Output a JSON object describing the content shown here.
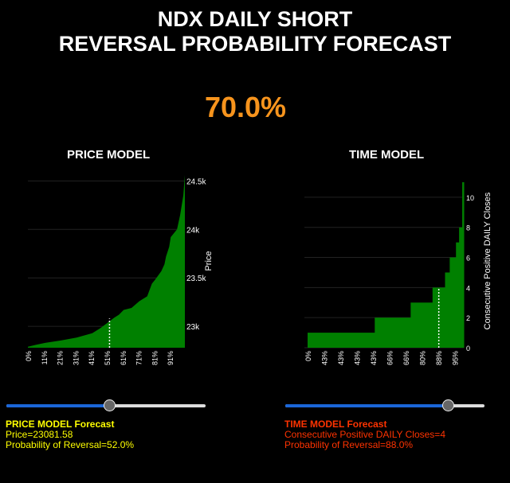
{
  "title": {
    "line1": "NDX DAILY SHORT",
    "line2": "REVERSAL PROBABILITY FORECAST"
  },
  "overall_probability": "70.0%",
  "colors": {
    "bar": "#008000",
    "accent": "#f7941d",
    "price_text": "#ffff00",
    "time_text": "#ff3300",
    "slider": "#1a66d8"
  },
  "chart_data": [
    {
      "type": "area",
      "title": "PRICE MODEL",
      "ylabel": "Price",
      "ylim": [
        22780,
        24560
      ],
      "yticks": [
        {
          "v": 23000,
          "label": "23k"
        },
        {
          "v": 23500,
          "label": "23.5k"
        },
        {
          "v": 24000,
          "label": "24k"
        },
        {
          "v": 24500,
          "label": "24.5k"
        }
      ],
      "xtick_labels": [
        "0%",
        "11%",
        "21%",
        "31%",
        "41%",
        "51%",
        "61%",
        "71%",
        "81%",
        "91%"
      ],
      "x": [
        0,
        5,
        11,
        21,
        31,
        41,
        46,
        51,
        55,
        58,
        61,
        66,
        71,
        76,
        79,
        81,
        85,
        87,
        88,
        90,
        91,
        95,
        97,
        99,
        100
      ],
      "y": [
        22790,
        22810,
        22830,
        22855,
        22885,
        22930,
        22980,
        23040,
        23090,
        23120,
        23170,
        23190,
        23260,
        23310,
        23440,
        23480,
        23570,
        23640,
        23720,
        23820,
        23920,
        24000,
        24150,
        24350,
        24560
      ],
      "marker": {
        "percentile": 52,
        "value": 23081.58
      }
    },
    {
      "type": "step",
      "title": "TIME MODEL",
      "ylabel": "Consecutive Positive DAILY Closes",
      "ylim": [
        0,
        11
      ],
      "yticks": [
        0,
        2,
        4,
        6,
        8,
        10
      ],
      "xtick_labels": [
        "0%",
        "43%",
        "43%",
        "43%",
        "43%",
        "66%",
        "66%",
        "80%",
        "88%",
        "95%"
      ],
      "steps": [
        {
          "from": 0,
          "to": 43,
          "value": 1
        },
        {
          "from": 43,
          "to": 66,
          "value": 2
        },
        {
          "from": 66,
          "to": 80,
          "value": 3
        },
        {
          "from": 80,
          "to": 88,
          "value": 4
        },
        {
          "from": 88,
          "to": 91,
          "value": 5
        },
        {
          "from": 91,
          "to": 95,
          "value": 6
        },
        {
          "from": 95,
          "to": 97,
          "value": 7
        },
        {
          "from": 97,
          "to": 99,
          "value": 8
        },
        {
          "from": 99,
          "to": 100,
          "value": 11
        }
      ],
      "marker": {
        "percentile": 84,
        "value": 4
      }
    }
  ],
  "price_slider": {
    "value_fraction": 0.52
  },
  "time_slider": {
    "value_fraction": 0.82
  },
  "price_forecast": {
    "heading": "PRICE MODEL Forecast",
    "price": "Price=23081.58",
    "prob": "Probability of Reversal=52.0%"
  },
  "time_forecast": {
    "heading": "TIME MODEL Forecast",
    "closes": "Consecutive Positive DAILY Closes=4",
    "prob": "Probability of Reversal=88.0%"
  }
}
